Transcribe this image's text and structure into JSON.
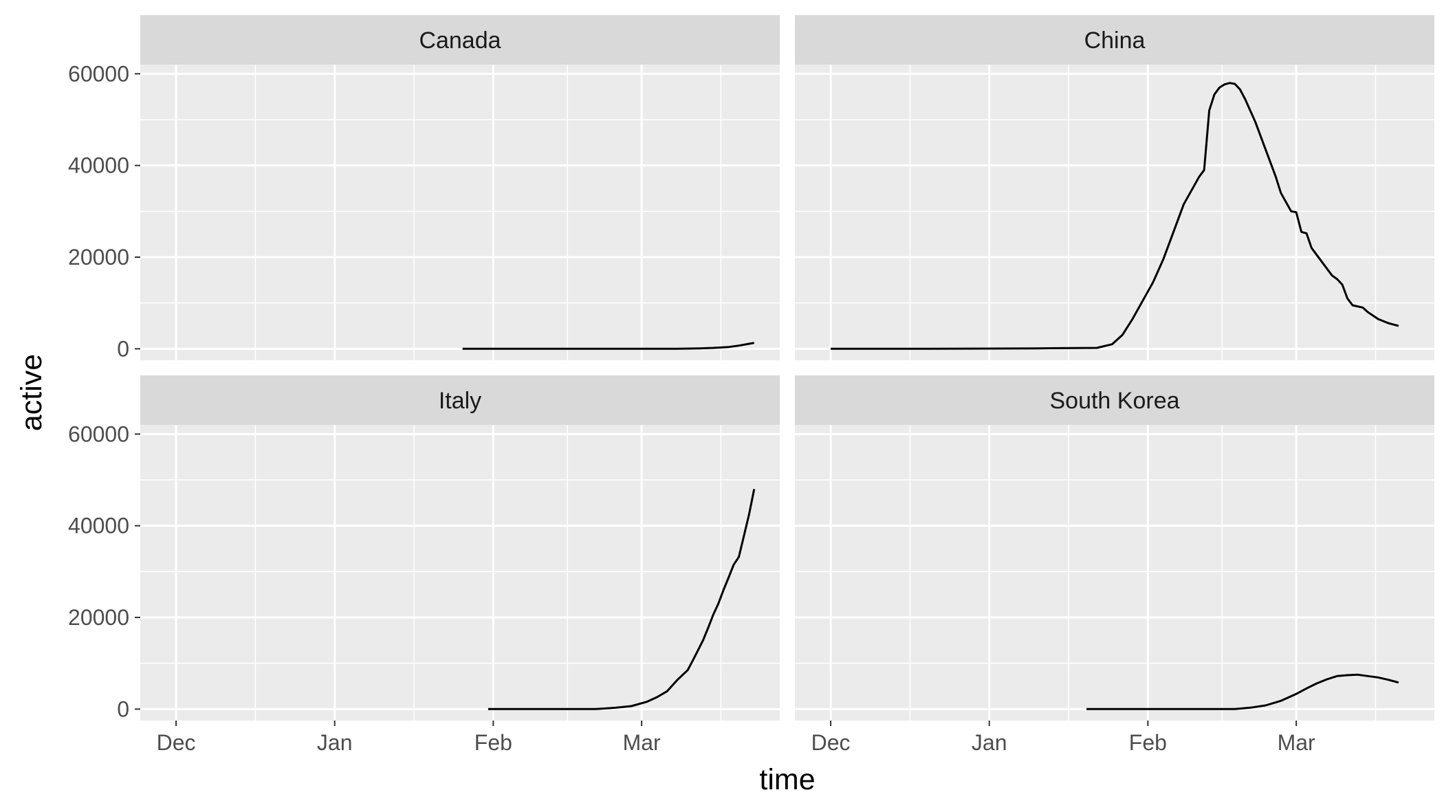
{
  "chart_data": {
    "type": "line",
    "xlabel": "time",
    "ylabel": "active",
    "ylim": [
      -2500,
      62000
    ],
    "y_ticks": [
      0,
      20000,
      40000,
      60000
    ],
    "y_tick_labels": [
      "0",
      "20000",
      "40000",
      "60000"
    ],
    "xlim": [
      "2019-11-24",
      "2020-03-28"
    ],
    "x_ticks": [
      "2019-12-01",
      "2020-01-01",
      "2020-02-01",
      "2020-03-01"
    ],
    "x_tick_labels": [
      "Dec",
      "Jan",
      "Feb",
      "Mar"
    ],
    "grid": true,
    "line_color": "#000000",
    "panel_background": "#ebebeb",
    "strip_background": "#d9d9d9",
    "panels": [
      {
        "title": "Canada",
        "x": [
          "2020-01-26",
          "2020-02-15",
          "2020-03-01",
          "2020-03-08",
          "2020-03-12",
          "2020-03-15",
          "2020-03-18",
          "2020-03-20",
          "2020-03-22",
          "2020-03-23"
        ],
        "y": [
          0,
          0,
          0,
          10,
          80,
          200,
          400,
          700,
          1100,
          1300
        ]
      },
      {
        "title": "China",
        "x": [
          "2019-12-01",
          "2019-12-20",
          "2020-01-10",
          "2020-01-22",
          "2020-01-25",
          "2020-01-27",
          "2020-01-29",
          "2020-01-31",
          "2020-02-02",
          "2020-02-04",
          "2020-02-06",
          "2020-02-08",
          "2020-02-10",
          "2020-02-11",
          "2020-02-12",
          "2020-02-13",
          "2020-02-14",
          "2020-02-15",
          "2020-02-16",
          "2020-02-17",
          "2020-02-18",
          "2020-02-19",
          "2020-02-20",
          "2020-02-21",
          "2020-02-22",
          "2020-02-24",
          "2020-02-26",
          "2020-02-27",
          "2020-02-29",
          "2020-03-01",
          "2020-03-02",
          "2020-03-03",
          "2020-03-04",
          "2020-03-06",
          "2020-03-08",
          "2020-03-09",
          "2020-03-10",
          "2020-03-11",
          "2020-03-12",
          "2020-03-14",
          "2020-03-15",
          "2020-03-17",
          "2020-03-19",
          "2020-03-21"
        ],
        "y": [
          0,
          0,
          100,
          200,
          1000,
          3000,
          6500,
          10500,
          14500,
          19500,
          25500,
          31500,
          35500,
          37500,
          39000,
          52000,
          55500,
          57000,
          57700,
          58000,
          57800,
          56600,
          54500,
          52000,
          49500,
          43500,
          37500,
          34000,
          30000,
          29800,
          25500,
          25200,
          22000,
          19000,
          16000,
          15200,
          14000,
          11000,
          9500,
          9000,
          8000,
          6500,
          5600,
          5000
        ]
      },
      {
        "title": "Italy",
        "x": [
          "2020-01-31",
          "2020-02-21",
          "2020-02-25",
          "2020-02-28",
          "2020-03-02",
          "2020-03-04",
          "2020-03-06",
          "2020-03-08",
          "2020-03-10",
          "2020-03-11",
          "2020-03-12",
          "2020-03-13",
          "2020-03-14",
          "2020-03-15",
          "2020-03-16",
          "2020-03-17",
          "2020-03-18",
          "2020-03-19",
          "2020-03-20",
          "2020-03-21",
          "2020-03-22",
          "2020-03-23"
        ],
        "y": [
          0,
          0,
          300,
          650,
          1600,
          2600,
          3900,
          6400,
          8500,
          10600,
          12800,
          15000,
          17700,
          20600,
          23000,
          26000,
          28700,
          31500,
          33200,
          37800,
          42500,
          48000
        ]
      },
      {
        "title": "South Korea",
        "x": [
          "2020-01-20",
          "2020-02-18",
          "2020-02-21",
          "2020-02-24",
          "2020-02-27",
          "2020-03-01",
          "2020-03-03",
          "2020-03-05",
          "2020-03-07",
          "2020-03-09",
          "2020-03-11",
          "2020-03-13",
          "2020-03-15",
          "2020-03-17",
          "2020-03-19",
          "2020-03-21"
        ],
        "y": [
          0,
          0,
          300,
          800,
          1800,
          3300,
          4500,
          5600,
          6500,
          7200,
          7400,
          7500,
          7200,
          6900,
          6400,
          5800
        ]
      }
    ]
  }
}
